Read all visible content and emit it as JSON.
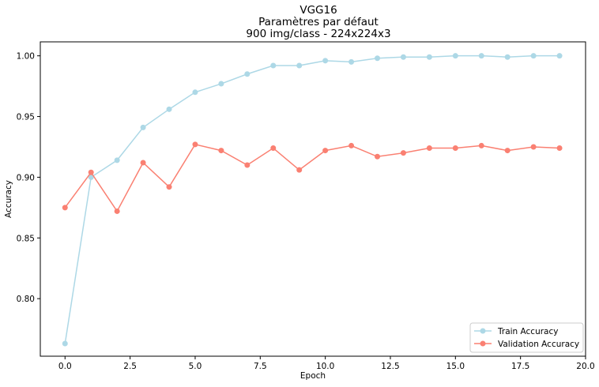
{
  "chart_data": {
    "type": "line",
    "title_lines": [
      "VGG16",
      "Paramètres par défaut",
      "900 img/class - 224x224x3"
    ],
    "xlabel": "Epoch",
    "ylabel": "Accuracy",
    "xlim": [
      -0.95,
      20.0
    ],
    "ylim": [
      0.7526,
      1.0115
    ],
    "x_ticks": [
      0.0,
      2.5,
      5.0,
      7.5,
      10.0,
      12.5,
      15.0,
      17.5,
      20.0
    ],
    "x_tick_labels": [
      "0.0",
      "2.5",
      "5.0",
      "7.5",
      "10.0",
      "12.5",
      "15.0",
      "17.5",
      "20.0"
    ],
    "y_ticks": [
      0.8,
      0.85,
      0.9,
      0.95,
      1.0
    ],
    "y_tick_labels": [
      "0.80",
      "0.85",
      "0.90",
      "0.95",
      "1.00"
    ],
    "grid": false,
    "legend_position": "lower-right",
    "x": [
      0,
      1,
      2,
      3,
      4,
      5,
      6,
      7,
      8,
      9,
      10,
      11,
      12,
      13,
      14,
      15,
      16,
      17,
      18,
      19
    ],
    "series": [
      {
        "name": "Train Accuracy",
        "color": "#add8e6",
        "marker": "circle",
        "values": [
          0.763,
          0.9,
          0.914,
          0.941,
          0.956,
          0.97,
          0.977,
          0.985,
          0.992,
          0.992,
          0.996,
          0.995,
          0.998,
          0.999,
          0.999,
          1.0,
          1.0,
          0.999,
          1.0,
          1.0
        ]
      },
      {
        "name": "Validation Accuracy",
        "color": "#fa8072",
        "marker": "circle",
        "values": [
          0.875,
          0.904,
          0.872,
          0.912,
          0.892,
          0.927,
          0.922,
          0.91,
          0.924,
          0.906,
          0.922,
          0.926,
          0.917,
          0.92,
          0.924,
          0.924,
          0.926,
          0.922,
          0.925,
          0.924
        ]
      }
    ]
  }
}
